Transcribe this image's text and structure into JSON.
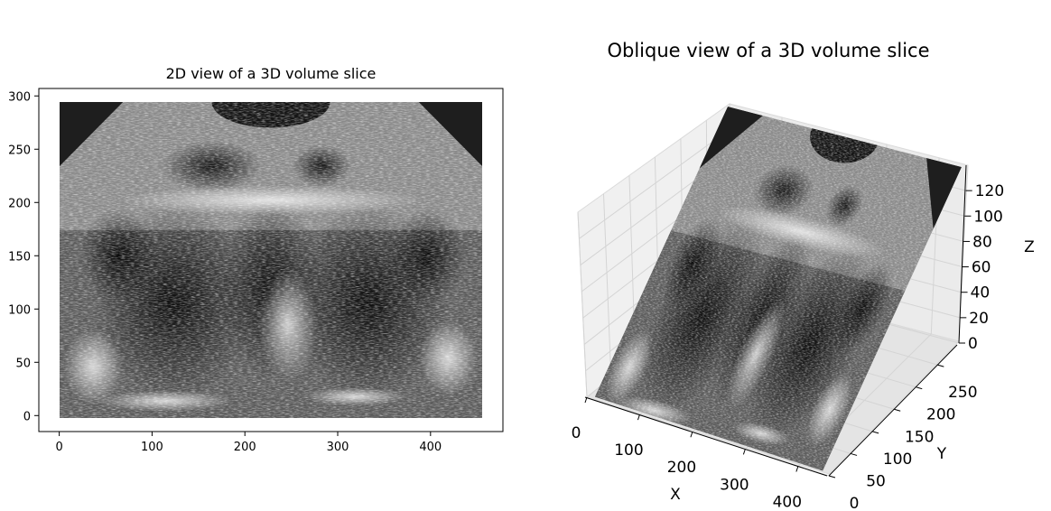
{
  "chart_data": [
    {
      "type": "image",
      "title": "2D view of a 3D volume slice",
      "xlabel": "",
      "ylabel": "",
      "xlim": [
        -22,
        478
      ],
      "ylim": [
        -15,
        307
      ],
      "xticks": [
        0,
        100,
        200,
        300,
        400
      ],
      "yticks": [
        0,
        50,
        100,
        150,
        200,
        250,
        300
      ],
      "image_extent": [
        0,
        455,
        0,
        295
      ],
      "colormap": "gray"
    },
    {
      "type": "surface-3d",
      "title": "Oblique view of a 3D volume slice",
      "xlabel": "X",
      "ylabel": "Y",
      "zlabel": "Z",
      "xticks": [
        0,
        100,
        200,
        300,
        400
      ],
      "yticks": [
        0,
        50,
        100,
        150,
        200,
        250
      ],
      "zticks": [
        0,
        20,
        40,
        60,
        80,
        100,
        120
      ],
      "colormap": "gray"
    }
  ]
}
